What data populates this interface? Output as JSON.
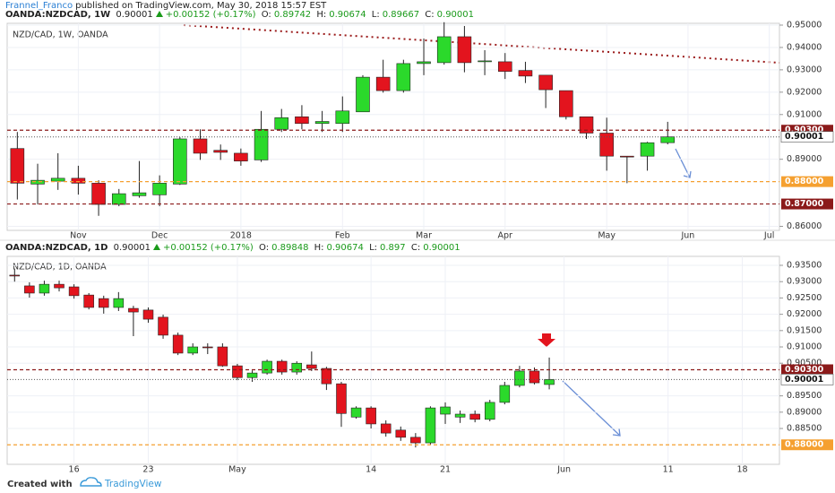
{
  "header": {
    "author": "Frannel_Franco",
    "published": "published on TradingView.com, May 30, 2018 15:57 EST"
  },
  "footer": {
    "created": "Created with",
    "brand": "TradingView"
  },
  "chart_data": [
    {
      "type": "candlestick",
      "symbol": "OANDA:NZDCAD, 1W",
      "title": "NZD/CAD, 1W, OANDA",
      "change": "+0.00152 (+0.17%)",
      "ohlc_labels": [
        "O:",
        "H:",
        "L:",
        "C:"
      ],
      "up_color": "#2bd92b",
      "down_color": "#e3141e",
      "last_price_color": "#555",
      "categories": [
        null,
        null,
        null,
        "Nov",
        null,
        null,
        null,
        "Dec",
        null,
        null,
        null,
        "2018",
        null,
        null,
        null,
        null,
        "Feb",
        null,
        null,
        null,
        "Mar",
        null,
        null,
        null,
        "Apr",
        null,
        null,
        null,
        null,
        "May",
        null,
        null,
        null,
        "Jun",
        null,
        null,
        null,
        "Jul"
      ],
      "open": [
        0.8948,
        0.8789,
        0.8802,
        0.8815,
        0.8793,
        0.8698,
        0.8737,
        0.8741,
        0.8789,
        0.8991,
        0.894,
        0.8927,
        0.8897,
        0.9034,
        0.909,
        0.906,
        0.906,
        0.9112,
        0.9267,
        0.9207,
        0.9328,
        0.9332,
        0.9448,
        0.9336,
        0.9336,
        0.9297,
        0.9276,
        0.9207,
        0.909,
        0.9017,
        0.8914,
        0.8914,
        0.89742,
        null,
        null,
        null,
        null,
        null
      ],
      "high": [
        0.9022,
        0.888,
        0.8927,
        0.8871,
        0.8806,
        0.8767,
        0.8892,
        0.8828,
        0.8999,
        0.9034,
        0.8966,
        0.8948,
        0.9116,
        0.9125,
        0.9142,
        0.9116,
        0.9181,
        0.9276,
        0.9345,
        0.9345,
        0.944,
        0.9513,
        0.9496,
        0.9388,
        0.9375,
        0.9336,
        0.9276,
        0.9207,
        0.909,
        0.9086,
        0.8914,
        0.8978,
        0.90674,
        null,
        null,
        null,
        null,
        null
      ],
      "low": [
        0.872,
        0.8698,
        0.8763,
        0.8742,
        0.8647,
        0.869,
        0.8728,
        0.869,
        0.8785,
        0.8897,
        0.8897,
        0.8871,
        0.8888,
        0.9022,
        0.9034,
        0.9022,
        0.9022,
        0.9112,
        0.9198,
        0.9198,
        0.9276,
        0.9323,
        0.9289,
        0.9276,
        0.9259,
        0.9241,
        0.9129,
        0.9078,
        0.8991,
        0.8849,
        0.8793,
        0.8849,
        0.89667,
        null,
        null,
        null,
        null,
        null
      ],
      "close": [
        0.8793,
        0.8806,
        0.8815,
        0.8793,
        0.8698,
        0.8746,
        0.875,
        0.8793,
        0.8991,
        0.8927,
        0.8931,
        0.8892,
        0.9034,
        0.9086,
        0.906,
        0.9069,
        0.9116,
        0.9267,
        0.9207,
        0.9328,
        0.9336,
        0.9448,
        0.9332,
        0.934,
        0.9293,
        0.9272,
        0.9211,
        0.909,
        0.9017,
        0.8914,
        0.891,
        0.8974,
        0.90001,
        null,
        null,
        null,
        null,
        null
      ],
      "ylim": [
        0.8582,
        0.9508
      ],
      "yticks": [
        {
          "value": 0.86,
          "label": "0.86000"
        },
        {
          "value": 0.89,
          "label": "0.89000"
        },
        {
          "value": 0.91,
          "label": "0.91000"
        },
        {
          "value": 0.92,
          "label": "0.92000"
        },
        {
          "value": 0.93,
          "label": "0.93000"
        },
        {
          "value": 0.94,
          "label": "0.94000"
        },
        {
          "value": 0.95,
          "label": "0.95000"
        }
      ],
      "price_lines": [
        {
          "value": 0.903,
          "label": "0.90300",
          "color": "#8b1a1a"
        },
        {
          "value": 0.88,
          "label": "0.88000",
          "color": "#f5a030"
        },
        {
          "value": 0.87,
          "label": "0.87000",
          "color": "#8b1a1a"
        }
      ],
      "grid": true
    },
    {
      "type": "candlestick",
      "symbol": "OANDA:NZDCAD, 1D",
      "title": "NZD/CAD, 1D, OANDA",
      "change": "+0.00152 (+0.17%)",
      "ohlc_labels": [
        "O:",
        "H:",
        "L:",
        "C:"
      ],
      "up_color": "#2bd92b",
      "down_color": "#e3141e",
      "last_price_color": "#555",
      "categories": [
        null,
        null,
        null,
        null,
        "16",
        null,
        null,
        null,
        null,
        "23",
        null,
        null,
        null,
        null,
        null,
        "May",
        null,
        null,
        null,
        null,
        null,
        null,
        null,
        null,
        "14",
        null,
        null,
        null,
        null,
        "21",
        null,
        null,
        null,
        null,
        null,
        null,
        null,
        "Jun",
        null,
        null,
        null,
        null,
        null,
        null,
        "11",
        null,
        null,
        null,
        null,
        "18",
        null,
        null
      ],
      "open": [
        0.932,
        0.9287,
        0.9265,
        0.9292,
        0.9284,
        0.9259,
        0.9248,
        0.9221,
        0.9218,
        0.9213,
        0.9191,
        0.9136,
        0.9081,
        0.91,
        0.91,
        0.9042,
        0.9006,
        0.902,
        0.9056,
        0.9023,
        0.9045,
        0.9034,
        0.8987,
        0.8885,
        0.8913,
        0.8864,
        0.8845,
        0.8823,
        0.8806,
        0.8894,
        0.8885,
        0.8894,
        0.8878,
        0.893,
        0.8982,
        0.9026,
        0.89848,
        null,
        null,
        null,
        null,
        null,
        null,
        null,
        null,
        null,
        null,
        null,
        null,
        null,
        null,
        null
      ],
      "high": [
        0.934,
        0.9298,
        0.9303,
        0.9303,
        0.9292,
        0.9265,
        0.9257,
        0.9268,
        0.9226,
        0.9221,
        0.9199,
        0.9144,
        0.9111,
        0.9111,
        0.9111,
        0.9048,
        0.9028,
        0.9061,
        0.9061,
        0.9056,
        0.9086,
        0.9039,
        0.8993,
        0.8918,
        0.8918,
        0.8875,
        0.8856,
        0.8836,
        0.8918,
        0.893,
        0.8905,
        0.8905,
        0.8938,
        0.8993,
        0.9042,
        0.9037,
        0.90674,
        null,
        null,
        null,
        null,
        null,
        null,
        null,
        null,
        null,
        null,
        null,
        null,
        null,
        null,
        null
      ],
      "low": [
        0.93,
        0.9251,
        0.9257,
        0.927,
        0.9248,
        0.9215,
        0.9202,
        0.921,
        0.9133,
        0.9174,
        0.9125,
        0.9075,
        0.9075,
        0.9078,
        0.9039,
        0.8998,
        0.8993,
        0.9015,
        0.9015,
        0.9015,
        0.9026,
        0.8968,
        0.8855,
        0.888,
        0.885,
        0.8825,
        0.8812,
        0.8792,
        0.88,
        0.8864,
        0.8867,
        0.8869,
        0.8872,
        0.8924,
        0.8976,
        0.8985,
        0.897,
        null,
        null,
        null,
        null,
        null,
        null,
        null,
        null,
        null,
        null,
        null,
        null,
        null,
        null,
        null
      ],
      "close": [
        0.9318,
        0.9265,
        0.9292,
        0.9281,
        0.9257,
        0.9221,
        0.9221,
        0.9248,
        0.9207,
        0.9185,
        0.9136,
        0.9081,
        0.91,
        0.9098,
        0.9042,
        0.9006,
        0.902,
        0.9056,
        0.9023,
        0.905,
        0.9034,
        0.8987,
        0.8896,
        0.8913,
        0.8864,
        0.8836,
        0.8823,
        0.8806,
        0.8913,
        0.8916,
        0.8894,
        0.8878,
        0.893,
        0.8982,
        0.9026,
        0.899,
        0.90001,
        null,
        null,
        null,
        null,
        null,
        null,
        null,
        null,
        null,
        null,
        null,
        null,
        null,
        null,
        null
      ],
      "ylim": [
        0.87402,
        0.93775
      ],
      "yticks": [
        {
          "value": 0.885,
          "label": "0.88500"
        },
        {
          "value": 0.89,
          "label": "0.89000"
        },
        {
          "value": 0.895,
          "label": "0.89500"
        },
        {
          "value": 0.905,
          "label": "0.90500"
        },
        {
          "value": 0.91,
          "label": "0.91000"
        },
        {
          "value": 0.915,
          "label": "0.91500"
        },
        {
          "value": 0.92,
          "label": "0.92000"
        },
        {
          "value": 0.925,
          "label": "0.92500"
        },
        {
          "value": 0.93,
          "label": "0.93000"
        },
        {
          "value": 0.935,
          "label": "0.93500"
        }
      ],
      "price_lines": [
        {
          "value": 0.903,
          "label": "0.90300",
          "color": "#8b1a1a"
        },
        {
          "value": 0.88,
          "label": "0.88000",
          "color": "#f5a030"
        }
      ],
      "grid": true
    }
  ]
}
